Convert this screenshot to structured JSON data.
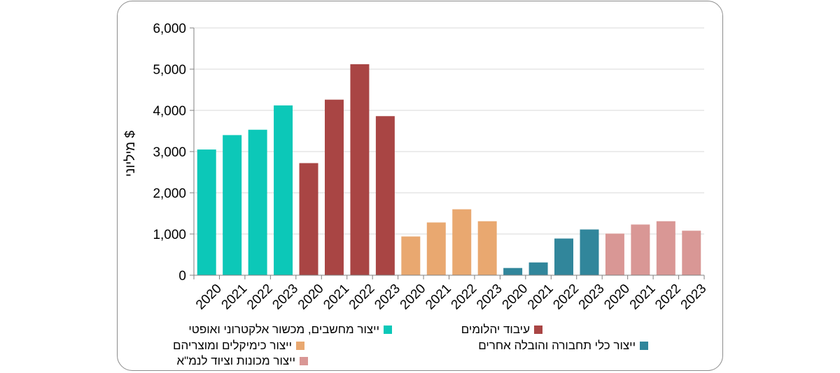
{
  "chart_data": {
    "type": "bar",
    "ylabel": "מיליוני $",
    "ylim": [
      0,
      6000
    ],
    "yticks": [
      0,
      1000,
      2000,
      3000,
      4000,
      5000,
      6000
    ],
    "ytick_labels": [
      "0",
      "1,000",
      "2,000",
      "3,000",
      "4,000",
      "5,000",
      "6,000"
    ],
    "grid": true,
    "legend_position": "bottom",
    "series": [
      {
        "name": "ייצור מחשבים, מכשור אלקטרוני ואופטי",
        "color": "#0cc8b8",
        "x": [
          "2020",
          "2021",
          "2022",
          "2023"
        ],
        "values": [
          3050,
          3400,
          3530,
          4120
        ]
      },
      {
        "name": "עיבוד יהלומים",
        "color": "#a94544",
        "x": [
          "2020",
          "2021",
          "2022",
          "2023"
        ],
        "values": [
          2720,
          4260,
          5120,
          3860
        ]
      },
      {
        "name": "ייצור כימיקלים ומוצריהם",
        "color": "#e9a870",
        "x": [
          "2020",
          "2021",
          "2022",
          "2023"
        ],
        "values": [
          940,
          1280,
          1600,
          1310
        ]
      },
      {
        "name": "ייצור כלי תחבורה והובלה אחרים",
        "color": "#31869b",
        "x": [
          "2020",
          "2021",
          "2022",
          "2023"
        ],
        "values": [
          175,
          310,
          890,
          1110
        ]
      },
      {
        "name": "ייצור מכונות וציוד לנמ\"א",
        "color": "#d99795",
        "x": [
          "2020",
          "2021",
          "2022",
          "2023"
        ],
        "values": [
          1010,
          1230,
          1310,
          1080
        ]
      }
    ]
  }
}
